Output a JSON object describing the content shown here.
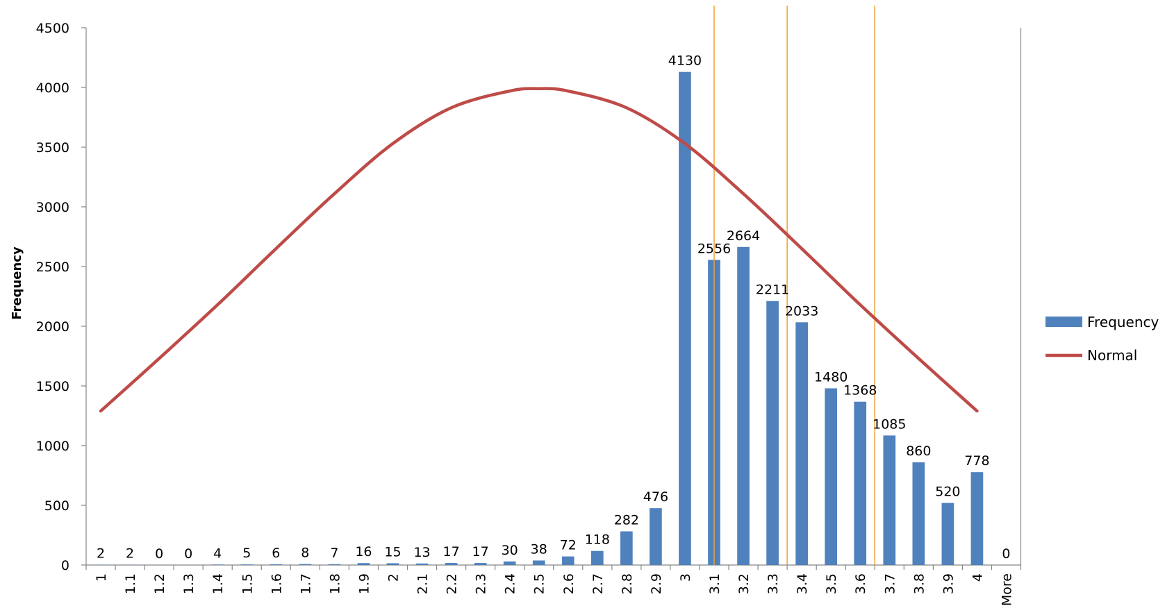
{
  "chart_data": {
    "type": "bar",
    "ylabel": "Frequency",
    "xlabel": "",
    "ylim": [
      0,
      4500
    ],
    "yticks": [
      0,
      500,
      1000,
      1500,
      2000,
      2500,
      3000,
      3500,
      4000,
      4500
    ],
    "categories": [
      "1",
      "1.1",
      "1.2",
      "1.3",
      "1.4",
      "1.5",
      "1.6",
      "1.7",
      "1.8",
      "1.9",
      "2",
      "2.1",
      "2.2",
      "2.3",
      "2.4",
      "2.5",
      "2.6",
      "2.7",
      "2.8",
      "2.9",
      "3",
      "3.1",
      "3.2",
      "3.3",
      "3.4",
      "3.5",
      "3.6",
      "3.7",
      "3.8",
      "3.9",
      "4",
      "More"
    ],
    "series": [
      {
        "name": "Frequency",
        "kind": "bar",
        "color": "#4f81bd",
        "values": [
          2,
          2,
          0,
          0,
          4,
          5,
          6,
          8,
          7,
          16,
          15,
          13,
          17,
          17,
          30,
          38,
          72,
          118,
          282,
          476,
          4130,
          2556,
          2664,
          2211,
          2033,
          1480,
          1368,
          1085,
          860,
          520,
          778,
          0
        ]
      },
      {
        "name": "Normal",
        "kind": "line",
        "color": "#be4b48",
        "x": [
          "1",
          "1.2",
          "1.4",
          "1.6",
          "1.8",
          "2",
          "2.2",
          "2.4",
          "2.5",
          "2.6",
          "2.8",
          "3",
          "3.2",
          "3.4",
          "3.6",
          "3.8",
          "4"
        ],
        "values": [
          1290,
          1730,
          2180,
          2650,
          3110,
          3530,
          3830,
          3970,
          3990,
          3970,
          3830,
          3530,
          3110,
          2650,
          2180,
          1730,
          1290
        ]
      }
    ],
    "reference_lines": {
      "color": "#f0a030",
      "positions": [
        "3.1",
        "3.35",
        "3.65"
      ]
    },
    "legend": {
      "placement": "right",
      "entries": [
        "Frequency",
        "Normal"
      ]
    },
    "grid": false
  }
}
